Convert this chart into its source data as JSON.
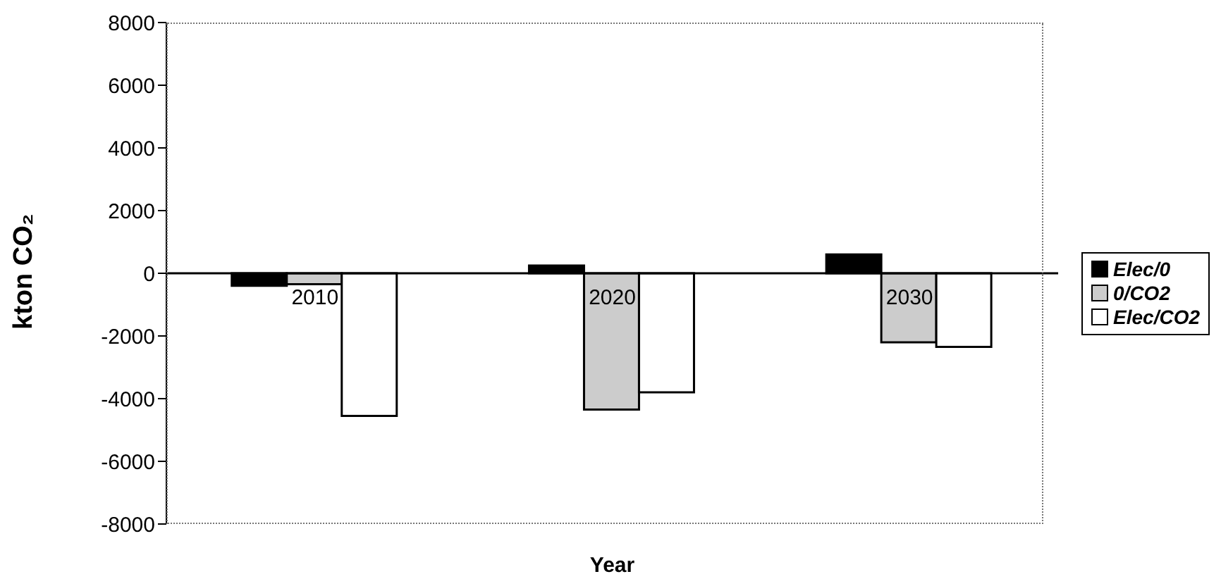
{
  "chart_data": {
    "type": "bar",
    "xlabel": "Year",
    "ylabel": "kton CO₂",
    "categories": [
      "2010",
      "2020",
      "2030"
    ],
    "series": [
      {
        "name": "Elec/0",
        "color": "#000000",
        "values": [
          -400,
          250,
          600
        ]
      },
      {
        "name": "0/CO2",
        "color": "#cccccc",
        "values": [
          -350,
          -4350,
          -2200
        ]
      },
      {
        "name": "Elec/CO2",
        "color": "#ffffff",
        "values": [
          -4550,
          -3800,
          -2350
        ]
      }
    ],
    "ylim": [
      -8000,
      8000
    ],
    "yticks": [
      -8000,
      -6000,
      -4000,
      -2000,
      0,
      2000,
      4000,
      6000,
      8000
    ],
    "legend": "right"
  }
}
